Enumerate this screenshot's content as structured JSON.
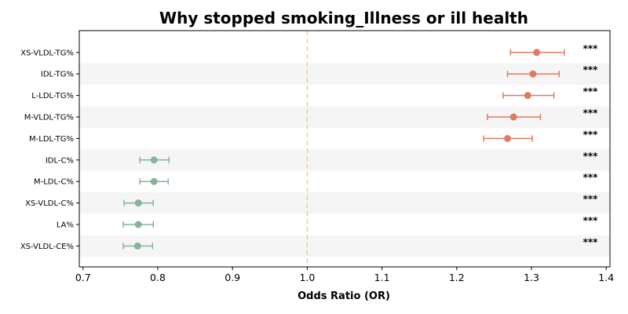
{
  "chart_data": {
    "type": "forest",
    "title": "Why stopped smoking_Illness or ill health",
    "xlabel": "Odds Ratio (OR)",
    "ylabel": "",
    "xlim": [
      0.695,
      1.405
    ],
    "xticks": [
      0.7,
      0.8,
      0.9,
      1.0,
      1.1,
      1.2,
      1.3,
      1.4
    ],
    "xtick_labels": [
      "0.7",
      "0.8",
      "0.9",
      "1.0",
      "1.1",
      "1.2",
      "1.3",
      "1.4"
    ],
    "reference_line": 1.0,
    "grid": false,
    "row_banding": true,
    "colors": {
      "positive": "#E07B62",
      "negative": "#84B59B",
      "reference": "#F2CC8F",
      "band": "#F5F5F5"
    },
    "rows": [
      {
        "label": "XS-VLDL-TG%",
        "or": 1.307,
        "ci_low": 1.272,
        "ci_high": 1.344,
        "sig": "***"
      },
      {
        "label": "IDL-TG%",
        "or": 1.302,
        "ci_low": 1.268,
        "ci_high": 1.337,
        "sig": "***"
      },
      {
        "label": "L-LDL-TG%",
        "or": 1.295,
        "ci_low": 1.262,
        "ci_high": 1.33,
        "sig": "***"
      },
      {
        "label": "M-VLDL-TG%",
        "or": 1.276,
        "ci_low": 1.241,
        "ci_high": 1.312,
        "sig": "***"
      },
      {
        "label": "M-LDL-TG%",
        "or": 1.268,
        "ci_low": 1.236,
        "ci_high": 1.301,
        "sig": "***"
      },
      {
        "label": "IDL-C%",
        "or": 0.795,
        "ci_low": 0.776,
        "ci_high": 0.815,
        "sig": "***"
      },
      {
        "label": "M-LDL-C%",
        "or": 0.795,
        "ci_low": 0.776,
        "ci_high": 0.814,
        "sig": "***"
      },
      {
        "label": "XS-VLDL-C%",
        "or": 0.774,
        "ci_low": 0.755,
        "ci_high": 0.794,
        "sig": "***"
      },
      {
        "label": "LA%",
        "or": 0.774,
        "ci_low": 0.754,
        "ci_high": 0.794,
        "sig": "***"
      },
      {
        "label": "XS-VLDL-CE%",
        "or": 0.773,
        "ci_low": 0.754,
        "ci_high": 0.793,
        "sig": "***"
      }
    ]
  }
}
